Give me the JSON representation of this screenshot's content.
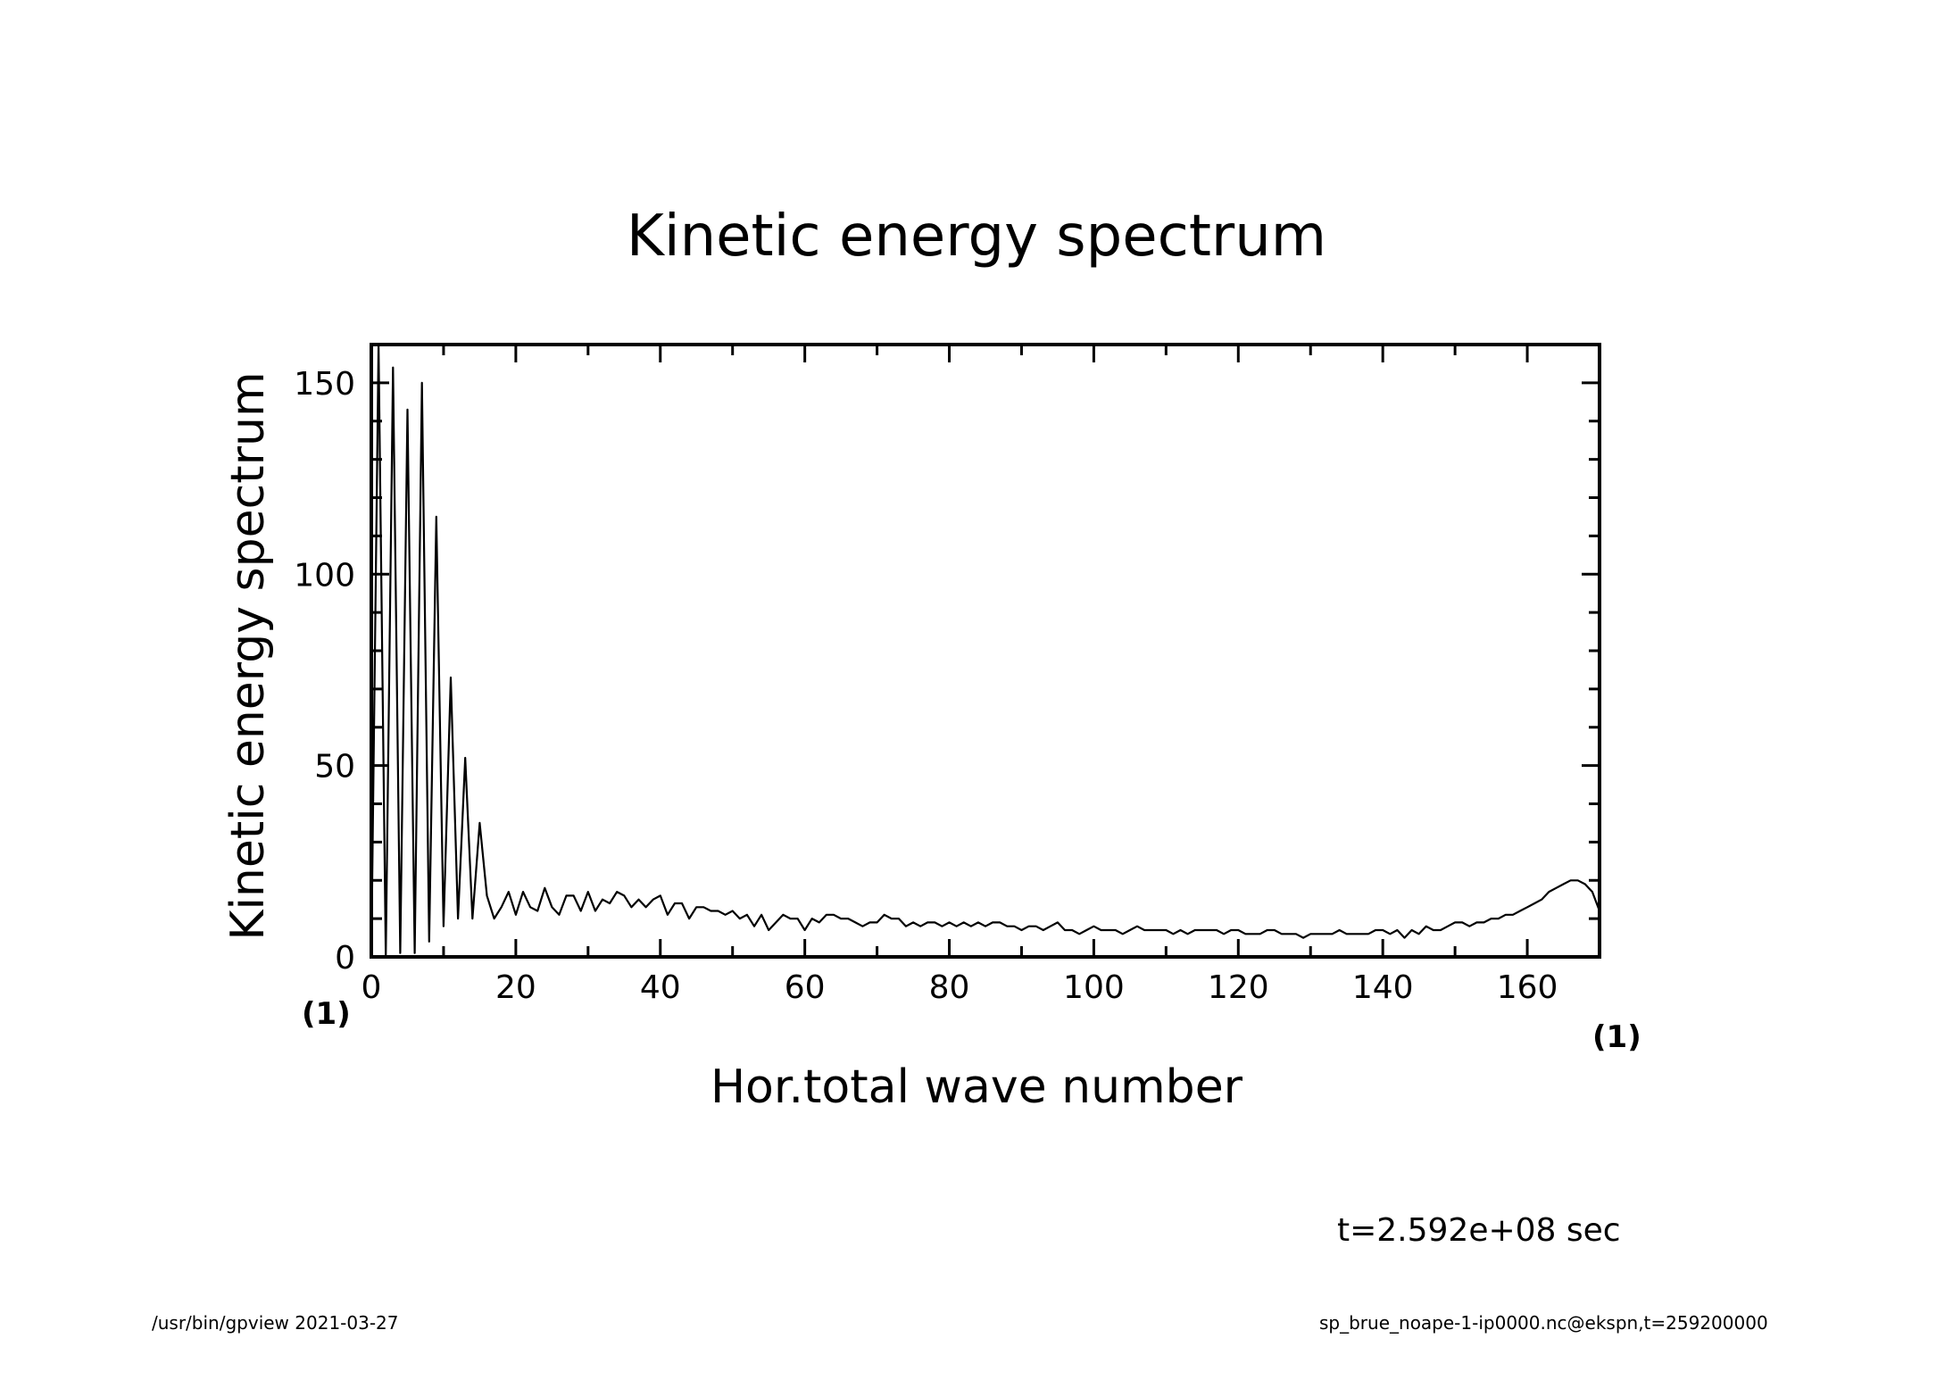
{
  "chart_data": {
    "type": "line",
    "title": "Kinetic energy spectrum",
    "xlabel": "Hor.total wave number",
    "ylabel": "Kinetic energy spectrum",
    "x_unit_left": "(1)",
    "x_unit_right": "(1)",
    "xlim": [
      0,
      170
    ],
    "ylim": [
      0,
      160
    ],
    "x_ticks": [
      0,
      20,
      40,
      60,
      80,
      100,
      120,
      140,
      160
    ],
    "y_ticks": [
      0,
      50,
      100,
      150
    ],
    "x_tick_labels": [
      "0",
      "20",
      "40",
      "60",
      "80",
      "100",
      "120",
      "140",
      "160"
    ],
    "y_tick_labels": [
      "0",
      "50",
      "100",
      "150"
    ],
    "grid": false,
    "series": [
      {
        "x": [
          0,
          1,
          2,
          3,
          4,
          5,
          6,
          7,
          8,
          9,
          10,
          11,
          12,
          13,
          14,
          15,
          16,
          17,
          18,
          19,
          20,
          21,
          22,
          23,
          24,
          25,
          26,
          27,
          28,
          29,
          30,
          31,
          32,
          33,
          34,
          35,
          36,
          37,
          38,
          39,
          40,
          41,
          42,
          43,
          44,
          45,
          46,
          47,
          48,
          49,
          50,
          51,
          52,
          53,
          54,
          55,
          56,
          57,
          58,
          59,
          60,
          61,
          62,
          63,
          64,
          65,
          66,
          67,
          68,
          69,
          70,
          71,
          72,
          73,
          74,
          75,
          76,
          77,
          78,
          79,
          80,
          81,
          82,
          83,
          84,
          85,
          86,
          87,
          88,
          89,
          90,
          91,
          92,
          93,
          94,
          95,
          96,
          97,
          98,
          99,
          100,
          101,
          102,
          103,
          104,
          105,
          106,
          107,
          108,
          109,
          110,
          111,
          112,
          113,
          114,
          115,
          116,
          117,
          118,
          119,
          120,
          121,
          122,
          123,
          124,
          125,
          126,
          127,
          128,
          129,
          130,
          131,
          132,
          133,
          134,
          135,
          136,
          137,
          138,
          139,
          140,
          141,
          142,
          143,
          144,
          145,
          146,
          147,
          148,
          149,
          150,
          151,
          152,
          153,
          154,
          155,
          156,
          157,
          158,
          159,
          160,
          161,
          162,
          163,
          164,
          165,
          166,
          167,
          168,
          169,
          170
        ],
        "y": [
          0,
          160,
          0,
          154,
          1,
          143,
          1,
          150,
          4,
          115,
          8,
          73,
          10,
          52,
          10,
          35,
          16,
          10,
          13,
          17,
          11,
          17,
          13,
          12,
          18,
          13,
          11,
          16,
          16,
          12,
          17,
          12,
          15,
          14,
          17,
          16,
          13,
          15,
          13,
          15,
          16,
          11,
          14,
          14,
          10,
          13,
          13,
          12,
          12,
          11,
          12,
          10,
          11,
          8,
          11,
          7,
          9,
          11,
          10,
          10,
          7,
          10,
          9,
          11,
          11,
          10,
          10,
          9,
          8,
          9,
          9,
          11,
          10,
          10,
          8,
          9,
          8,
          9,
          9,
          8,
          9,
          8,
          9,
          8,
          9,
          8,
          9,
          9,
          8,
          8,
          7,
          8,
          8,
          7,
          8,
          9,
          7,
          7,
          6,
          7,
          8,
          7,
          7,
          7,
          6,
          7,
          8,
          7,
          7,
          7,
          7,
          6,
          7,
          6,
          7,
          7,
          7,
          7,
          6,
          7,
          7,
          6,
          6,
          6,
          7,
          7,
          6,
          6,
          6,
          5,
          6,
          6,
          6,
          6,
          7,
          6,
          6,
          6,
          6,
          7,
          7,
          6,
          7,
          5,
          7,
          6,
          8,
          7,
          7,
          8,
          9,
          9,
          8,
          9,
          9,
          10,
          10,
          11,
          11,
          12,
          13,
          14,
          15,
          17,
          18,
          19,
          20,
          20,
          19,
          17,
          12
        ]
      }
    ]
  },
  "annotations": {
    "time_label": "t=2.592e+08 sec",
    "footer_left": "/usr/bin/gpview   2021-03-27",
    "footer_right": "sp_brue_noape-1-ip0000.nc@ekspn,t=259200000"
  }
}
